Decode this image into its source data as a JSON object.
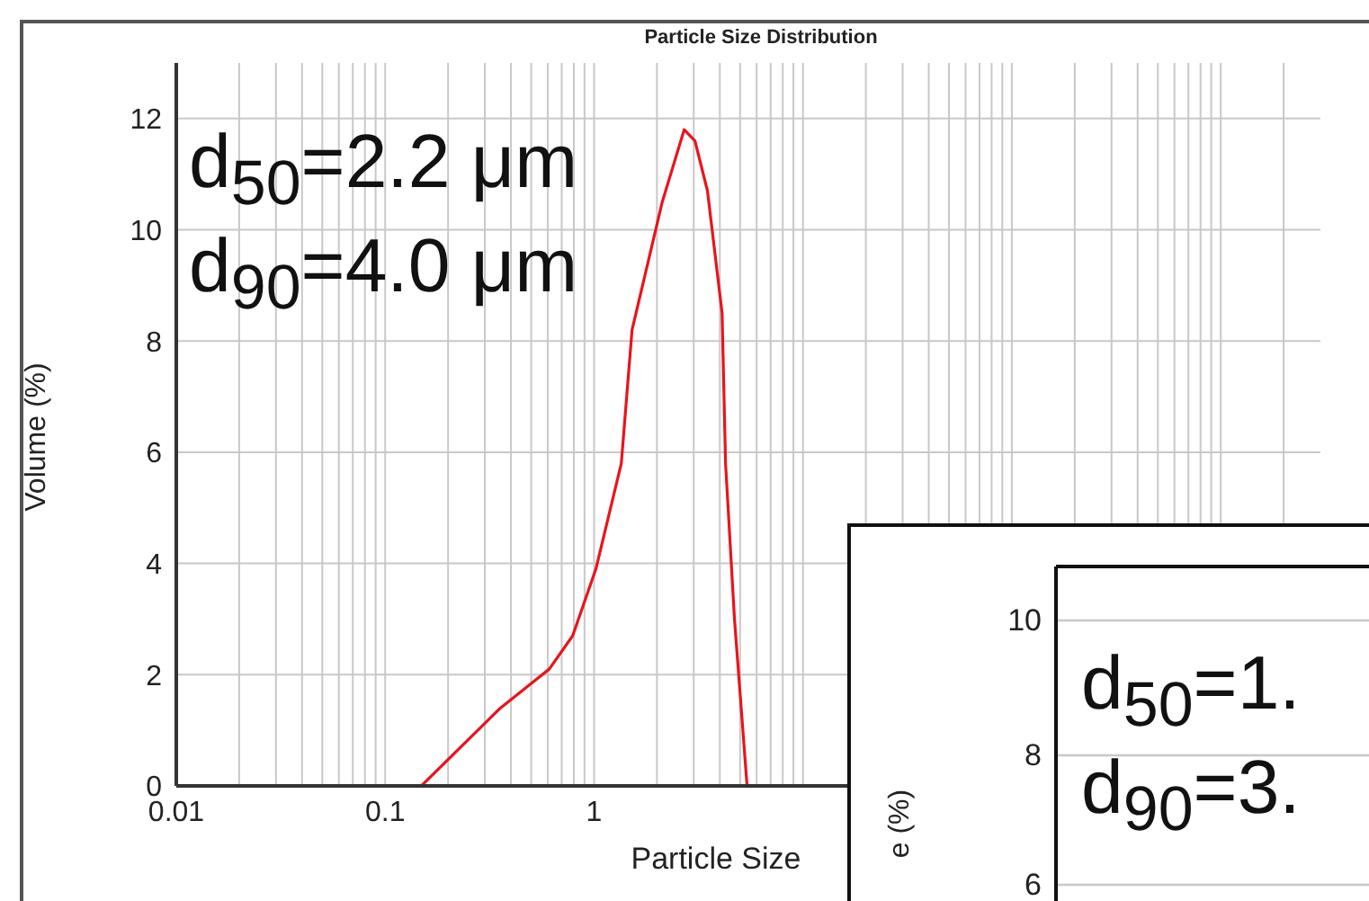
{
  "chart_data": [
    {
      "type": "line",
      "title": "Particle Size Distribution",
      "xlabel": "Particle Size",
      "ylabel": "Volume (%)",
      "log": "x",
      "grid": true,
      "marker": "none",
      "line_style": "solid",
      "xlim": [
        0.01,
        3000
      ],
      "xticks": [
        0.01,
        {
          "value": 0.02,
          "label": null
        },
        {
          "value": 0.03,
          "label": null
        },
        {
          "value": 0.04,
          "label": null
        },
        {
          "value": 0.05,
          "label": null
        },
        {
          "value": 0.06,
          "label": null
        },
        {
          "value": 0.07,
          "label": null
        },
        {
          "value": 0.08,
          "label": null
        },
        {
          "value": 0.09,
          "label": null
        },
        0.1,
        {
          "value": 0.2,
          "label": null
        },
        {
          "value": 0.3,
          "label": null
        },
        {
          "value": 0.4,
          "label": null
        },
        {
          "value": 0.5,
          "label": null
        },
        {
          "value": 0.6,
          "label": null
        },
        {
          "value": 0.7,
          "label": null
        },
        {
          "value": 0.8,
          "label": null
        },
        {
          "value": 0.9,
          "label": null
        },
        1,
        {
          "value": 2,
          "label": null
        },
        {
          "value": 3,
          "label": null
        },
        {
          "value": 4,
          "label": null
        },
        {
          "value": 5,
          "label": null
        },
        {
          "value": 6,
          "label": null
        },
        {
          "value": 7,
          "label": null
        },
        {
          "value": 8,
          "label": null
        },
        {
          "value": 9,
          "label": null
        },
        {
          "value": 10,
          "label": null
        },
        {
          "value": 20,
          "label": null
        },
        {
          "value": 30,
          "label": null
        },
        {
          "value": 40,
          "label": null
        },
        {
          "value": 50,
          "label": null
        },
        {
          "value": 60,
          "label": null
        },
        {
          "value": 70,
          "label": null
        },
        {
          "value": 80,
          "label": null
        },
        {
          "value": 90,
          "label": null
        },
        {
          "value": 100,
          "label": null
        },
        {
          "value": 200,
          "label": null
        },
        {
          "value": 300,
          "label": null
        },
        {
          "value": 400,
          "label": null
        },
        {
          "value": 500,
          "label": null
        },
        {
          "value": 600,
          "label": null
        },
        {
          "value": 700,
          "label": null
        },
        {
          "value": 800,
          "label": null
        },
        {
          "value": 900,
          "label": null
        },
        {
          "value": 1000,
          "label": null
        },
        {
          "value": 2000,
          "label": null
        }
      ],
      "ylim": [
        0,
        13
      ],
      "yticks": [
        0,
        2,
        4,
        6,
        8,
        10,
        12
      ],
      "annotations": [
        "d$_{50}$=2.2 μm",
        "d$_{90}$=4.0 μm"
      ],
      "series": [
        {
          "color": "#e8141c",
          "x": [
            0.02,
            0.149,
            0.356,
            0.61,
            0.79,
            1.02,
            1.35,
            1.52,
            2.12,
            2.7,
            3.04,
            3.49,
            4.1,
            4.26,
            4.7,
            5.4,
            8.5
          ],
          "values": [
            0,
            0,
            1.4,
            2.1,
            2.7,
            3.9,
            5.8,
            8.2,
            10.5,
            11.8,
            11.6,
            10.7,
            8.5,
            5.8,
            3.0,
            0,
            0
          ]
        }
      ]
    },
    {
      "type": "other",
      "ylabel": "e (%)",
      "annotations": [
        "10",
        "8",
        "6",
        "d$_{50}$=1.",
        "d$_{90}$=3."
      ]
    }
  ]
}
